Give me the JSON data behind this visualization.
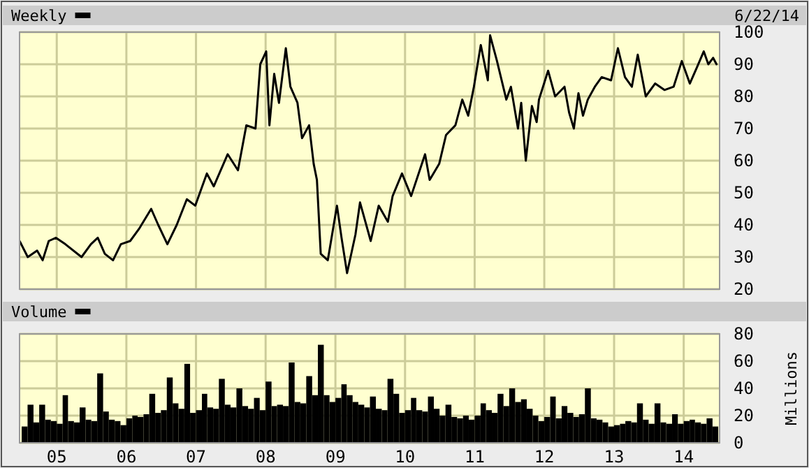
{
  "chart_data": [
    {
      "type": "line",
      "legend": "top left",
      "grid": true,
      "tick_labels": "y",
      "annotations": [
        "6/22/14"
      ],
      "xlim": [
        "2004-06-20",
        "2014-07-08"
      ],
      "xticks": [
        {
          "value": "2005",
          "label": null
        },
        {
          "value": "2006",
          "label": null
        },
        {
          "value": "2007",
          "label": null
        },
        {
          "value": "2008",
          "label": null
        },
        {
          "value": "2009",
          "label": null
        },
        {
          "value": "2010",
          "label": null
        },
        {
          "value": "2011",
          "label": null
        },
        {
          "value": "2012",
          "label": null
        },
        {
          "value": "2013",
          "label": null
        },
        {
          "value": "2014",
          "label": null
        }
      ],
      "ylim": [
        20,
        100
      ],
      "yticks": [
        20,
        30,
        40,
        50,
        60,
        70,
        80,
        90,
        100
      ],
      "series": [
        {
          "name": "Weekly",
          "color": "#000000",
          "x": [
            "2004-06-20",
            "2004-08-02",
            "2004-09-20",
            "2004-10-19",
            "2004-11-20",
            "2004-12-28",
            "2005-02-15",
            "2005-05-11",
            "2005-06-29",
            "2005-08-04",
            "2005-09-10",
            "2005-10-23",
            "2005-12-03",
            "2006-01-21",
            "2006-03-11",
            "2006-05-11",
            "2006-06-17",
            "2006-08-04",
            "2006-09-22",
            "2006-11-14",
            "2006-12-28",
            "2007-02-27",
            "2007-04-04",
            "2007-06-16",
            "2007-08-09",
            "2007-09-22",
            "2007-11-09",
            "2007-12-04",
            "2008-01-04",
            "2008-01-21",
            "2008-02-15",
            "2008-03-11",
            "2008-04-16",
            "2008-05-10",
            "2008-06-16",
            "2008-07-10",
            "2008-08-16",
            "2008-09-09",
            "2008-09-26",
            "2008-10-16",
            "2008-11-22",
            "2009-01-09",
            "2009-02-02",
            "2009-03-03",
            "2009-04-16",
            "2009-05-10",
            "2009-07-05",
            "2009-08-16",
            "2009-10-03",
            "2009-10-28",
            "2009-12-16",
            "2010-02-02",
            "2010-04-16",
            "2010-05-10",
            "2010-06-29",
            "2010-08-04",
            "2010-09-22",
            "2010-10-28",
            "2010-11-28",
            "2010-12-28",
            "2011-02-02",
            "2011-03-11",
            "2011-03-23",
            "2011-04-28",
            "2011-06-16",
            "2011-07-10",
            "2011-08-16",
            "2011-09-02",
            "2011-09-26",
            "2011-10-28",
            "2011-11-22",
            "2011-12-04",
            "2012-01-21",
            "2012-02-27",
            "2012-04-16",
            "2012-05-10",
            "2012-06-04",
            "2012-06-28",
            "2012-07-22",
            "2012-08-16",
            "2012-09-22",
            "2012-10-28",
            "2012-12-16",
            "2013-01-21",
            "2013-02-27",
            "2013-04-04",
            "2013-05-05",
            "2013-06-16",
            "2013-08-04",
            "2013-09-22",
            "2013-11-09",
            "2013-12-22",
            "2014-02-02",
            "2014-03-11",
            "2014-04-16",
            "2014-05-10",
            "2014-06-04",
            "2014-06-22"
          ],
          "values": [
            35,
            30,
            32,
            29,
            35,
            36,
            34,
            30,
            34,
            36,
            31,
            29,
            34,
            35,
            39,
            45,
            40,
            34,
            40,
            48,
            46,
            56,
            52,
            62,
            57,
            71,
            70,
            90,
            94,
            71,
            87,
            78,
            95,
            83,
            78,
            67,
            71,
            59,
            54,
            31,
            29,
            46,
            36,
            25,
            37,
            47,
            35,
            46,
            41,
            49,
            56,
            49,
            62,
            54,
            59,
            68,
            71,
            79,
            74,
            83,
            96,
            85,
            99,
            91,
            79,
            83,
            70,
            78,
            60,
            77,
            72,
            79,
            88,
            80,
            83,
            75,
            70,
            81,
            74,
            79,
            83,
            86,
            85,
            95,
            86,
            83,
            93,
            80,
            84,
            82,
            83,
            91,
            84,
            89,
            94,
            90,
            92,
            90
          ]
        }
      ]
    },
    {
      "type": "bar",
      "legend": "top left",
      "grid": true,
      "ylabel": "Millions",
      "xlim": [
        "2004-06-20",
        "2014-07-08"
      ],
      "xticks": [
        {
          "value": "2005",
          "label": "05"
        },
        {
          "value": "2006",
          "label": "06"
        },
        {
          "value": "2007",
          "label": "07"
        },
        {
          "value": "2008",
          "label": "08"
        },
        {
          "value": "2009",
          "label": "09"
        },
        {
          "value": "2010",
          "label": "10"
        },
        {
          "value": "2011",
          "label": "11"
        },
        {
          "value": "2012",
          "label": "12"
        },
        {
          "value": "2013",
          "label": "13"
        },
        {
          "value": "2014",
          "label": "14"
        }
      ],
      "ylim": [
        0,
        80
      ],
      "yticks": [
        0,
        20,
        40,
        60,
        80
      ],
      "series": [
        {
          "name": "Volume",
          "color": "#000000",
          "x": [
            "2004-07",
            "2004-08",
            "2004-09",
            "2004-10",
            "2004-11",
            "2004-12",
            "2005-01",
            "2005-02",
            "2005-03",
            "2005-04",
            "2005-05",
            "2005-06",
            "2005-07",
            "2005-08",
            "2005-09",
            "2005-10",
            "2005-11",
            "2005-12",
            "2006-01",
            "2006-02",
            "2006-03",
            "2006-04",
            "2006-05",
            "2006-06",
            "2006-07",
            "2006-08",
            "2006-09",
            "2006-10",
            "2006-11",
            "2006-12",
            "2007-01",
            "2007-02",
            "2007-03",
            "2007-04",
            "2007-05",
            "2007-06",
            "2007-07",
            "2007-08",
            "2007-09",
            "2007-10",
            "2007-11",
            "2007-12",
            "2008-01",
            "2008-02",
            "2008-03",
            "2008-04",
            "2008-05",
            "2008-06",
            "2008-07",
            "2008-08",
            "2008-09",
            "2008-10",
            "2008-11",
            "2008-12",
            "2009-01",
            "2009-02",
            "2009-03",
            "2009-04",
            "2009-05",
            "2009-06",
            "2009-07",
            "2009-08",
            "2009-09",
            "2009-10",
            "2009-11",
            "2009-12",
            "2010-01",
            "2010-02",
            "2010-03",
            "2010-04",
            "2010-05",
            "2010-06",
            "2010-07",
            "2010-08",
            "2010-09",
            "2010-10",
            "2010-11",
            "2010-12",
            "2011-01",
            "2011-02",
            "2011-03",
            "2011-04",
            "2011-05",
            "2011-06",
            "2011-07",
            "2011-08",
            "2011-09",
            "2011-10",
            "2011-11",
            "2011-12",
            "2012-01",
            "2012-02",
            "2012-03",
            "2012-04",
            "2012-05",
            "2012-06",
            "2012-07",
            "2012-08",
            "2012-09",
            "2012-10",
            "2012-11",
            "2012-12",
            "2013-01",
            "2013-02",
            "2013-03",
            "2013-04",
            "2013-05",
            "2013-06",
            "2013-07",
            "2013-08",
            "2013-09",
            "2013-10",
            "2013-11",
            "2013-12",
            "2014-01",
            "2014-02",
            "2014-03",
            "2014-04",
            "2014-05",
            "2014-06"
          ],
          "values": [
            12,
            28,
            15,
            28,
            17,
            16,
            14,
            35,
            16,
            15,
            26,
            17,
            16,
            51,
            23,
            17,
            16,
            13,
            18,
            20,
            19,
            21,
            36,
            22,
            24,
            48,
            29,
            25,
            58,
            22,
            24,
            36,
            26,
            25,
            47,
            28,
            26,
            40,
            27,
            25,
            33,
            24,
            45,
            27,
            28,
            27,
            59,
            30,
            29,
            49,
            35,
            72,
            35,
            30,
            33,
            43,
            35,
            30,
            28,
            26,
            34,
            25,
            24,
            47,
            36,
            22,
            24,
            33,
            24,
            23,
            34,
            25,
            20,
            28,
            19,
            18,
            20,
            17,
            20,
            29,
            24,
            22,
            36,
            27,
            40,
            30,
            32,
            25,
            20,
            16,
            19,
            34,
            18,
            27,
            22,
            19,
            21,
            40,
            18,
            17,
            15,
            12,
            13,
            14,
            16,
            15,
            29,
            17,
            14,
            29,
            15,
            14,
            21,
            14,
            16,
            17,
            15,
            14,
            18,
            12
          ]
        }
      ]
    }
  ]
}
